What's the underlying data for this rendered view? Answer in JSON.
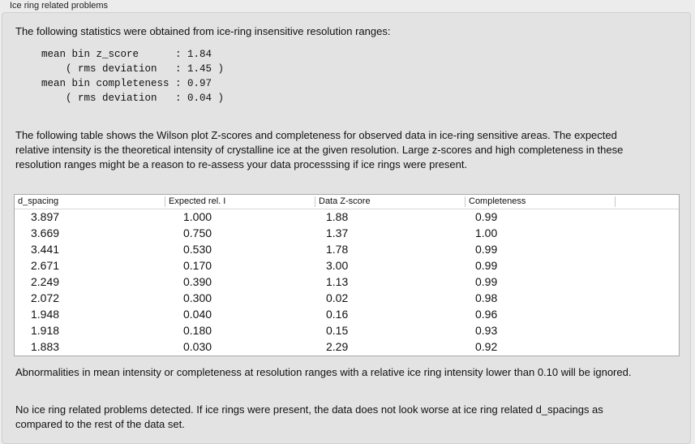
{
  "group_title": "Ice ring related problems",
  "intro": "The following statistics were obtained from ice-ring insensitive resolution ranges:",
  "stats": [
    "mean bin z_score      : 1.84",
    "    ( rms deviation   : 1.45 )",
    "mean bin completeness : 0.97",
    "    ( rms deviation   : 0.04 )"
  ],
  "table_intro": "The following table shows the Wilson plot Z-scores and completeness for observed data in ice-ring sensitive areas. The expected relative intensity is the theoretical intensity of crystalline ice at the given resolution. Large z-scores and high completeness in these resolution ranges might be a reason to re-assess your data processsing if ice rings were present.",
  "table": {
    "columns": [
      "d_spacing",
      "Expected rel. I",
      "Data Z-score",
      "Completeness"
    ],
    "rows": [
      [
        "3.897",
        "1.000",
        "1.88",
        "0.99"
      ],
      [
        "3.669",
        "0.750",
        "1.37",
        "1.00"
      ],
      [
        "3.441",
        "0.530",
        "1.78",
        "0.99"
      ],
      [
        "2.671",
        "0.170",
        "3.00",
        "0.99"
      ],
      [
        "2.249",
        "0.390",
        "1.13",
        "0.99"
      ],
      [
        "2.072",
        "0.300",
        "0.02",
        "0.98"
      ],
      [
        "1.948",
        "0.040",
        "0.16",
        "0.96"
      ],
      [
        "1.918",
        "0.180",
        "0.15",
        "0.93"
      ],
      [
        "1.883",
        "0.030",
        "2.29",
        "0.92"
      ]
    ]
  },
  "note": "Abnormalities in mean intensity or completeness at resolution ranges with a relative ice ring intensity lower than 0.10 will be ignored.",
  "conclusion": "No ice ring related problems detected. If ice rings were present, the data does not look worse at ice ring related d_spacings as compared to the rest of the data set."
}
